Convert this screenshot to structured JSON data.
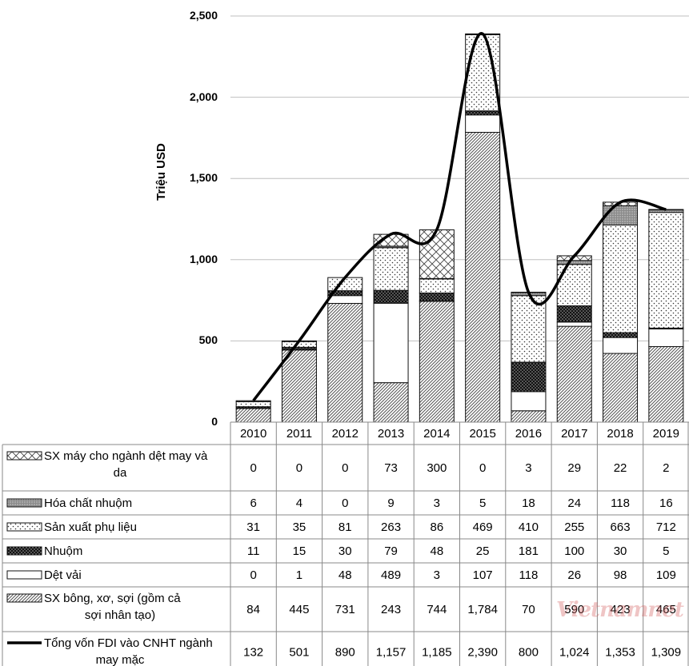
{
  "chart_data": {
    "type": "bar",
    "stacked": true,
    "ylabel": "Triệu USD",
    "ylim": [
      0,
      2500
    ],
    "yticks": [
      "0",
      "500",
      "1,000",
      "1,500",
      "2,000",
      "2,500"
    ],
    "categories": [
      "2010",
      "2011",
      "2012",
      "2013",
      "2014",
      "2015",
      "2016",
      "2017",
      "2018",
      "2019"
    ],
    "series": [
      {
        "name": "SX bông, xơ, sợi (gồm cả sợi nhân tạo)",
        "pattern": "diag",
        "values": [
          84,
          445,
          731,
          243,
          744,
          1784,
          70,
          590,
          423,
          465
        ],
        "labels": [
          "84",
          "445",
          "731",
          "243",
          "744",
          "1,784",
          "70",
          "590",
          "423",
          "465"
        ]
      },
      {
        "name": "Dệt vải",
        "pattern": "white",
        "values": [
          0,
          1,
          48,
          489,
          3,
          107,
          118,
          26,
          98,
          109
        ],
        "labels": [
          "0",
          "1",
          "48",
          "489",
          "3",
          "107",
          "118",
          "26",
          "98",
          "109"
        ]
      },
      {
        "name": "Nhuộm",
        "pattern": "black",
        "values": [
          11,
          15,
          30,
          79,
          48,
          25,
          181,
          100,
          30,
          5
        ],
        "labels": [
          "11",
          "15",
          "30",
          "79",
          "48",
          "25",
          "181",
          "100",
          "30",
          "5"
        ]
      },
      {
        "name": "Sản xuất phụ liệu",
        "pattern": "dots",
        "values": [
          31,
          35,
          81,
          263,
          86,
          469,
          410,
          255,
          663,
          712
        ],
        "labels": [
          "31",
          "35",
          "81",
          "263",
          "86",
          "469",
          "410",
          "255",
          "663",
          "712"
        ]
      },
      {
        "name": "Hóa chất nhuộm",
        "pattern": "gray",
        "values": [
          6,
          4,
          0,
          9,
          3,
          5,
          18,
          24,
          118,
          16
        ],
        "labels": [
          "6",
          "4",
          "0",
          "9",
          "3",
          "5",
          "18",
          "24",
          "118",
          "16"
        ]
      },
      {
        "name": "SX máy cho ngành dệt may và da",
        "pattern": "cross",
        "values": [
          0,
          0,
          0,
          73,
          300,
          0,
          3,
          29,
          22,
          2
        ],
        "labels": [
          "0",
          "0",
          "0",
          "73",
          "300",
          "0",
          "3",
          "29",
          "22",
          "2"
        ]
      }
    ],
    "line": {
      "name": "Tổng vốn FDI vào CNHT ngành may mặc",
      "values": [
        132,
        501,
        890,
        1157,
        1185,
        2390,
        800,
        1024,
        1353,
        1309
      ],
      "labels": [
        "132",
        "501",
        "890",
        "1,157",
        "1,185",
        "2,390",
        "800",
        "1,024",
        "1,353",
        "1,309"
      ]
    },
    "table_rows": [
      {
        "series": 5,
        "lines": [
          "SX máy cho ngành dệt may và",
          "da"
        ]
      },
      {
        "series": 4,
        "lines": [
          "Hóa chất nhuộm"
        ]
      },
      {
        "series": 3,
        "lines": [
          "Sản xuất phụ liệu"
        ]
      },
      {
        "series": 2,
        "lines": [
          "Nhuộm"
        ]
      },
      {
        "series": 1,
        "lines": [
          "Dệt vải"
        ]
      },
      {
        "series": 0,
        "lines": [
          "SX bông, xơ, sợi (gồm cả",
          "sợi nhân tạo)"
        ]
      },
      {
        "series": "line",
        "lines": [
          "Tổng vốn FDI vào CNHT ngành",
          "may mặc"
        ]
      }
    ],
    "watermark": "Vietnamnet"
  }
}
